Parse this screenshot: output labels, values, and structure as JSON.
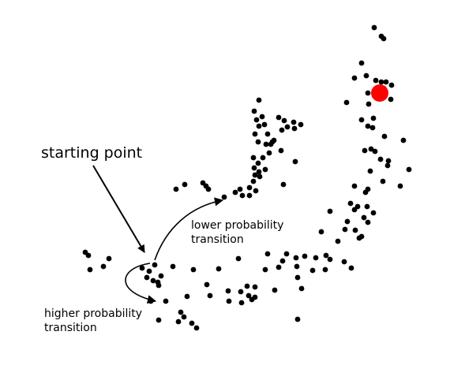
{
  "labels": {
    "starting_point": "starting point",
    "lower_transition": [
      "lower probability",
      "transition"
    ],
    "higher_transition": [
      "higher probability",
      "transition"
    ]
  },
  "colors": {
    "point": "#000000",
    "highlight": "#ff0000",
    "arrow": "#000000"
  },
  "legend": {
    "point_marker": "black-dot",
    "target_marker": "red-dot"
  }
}
